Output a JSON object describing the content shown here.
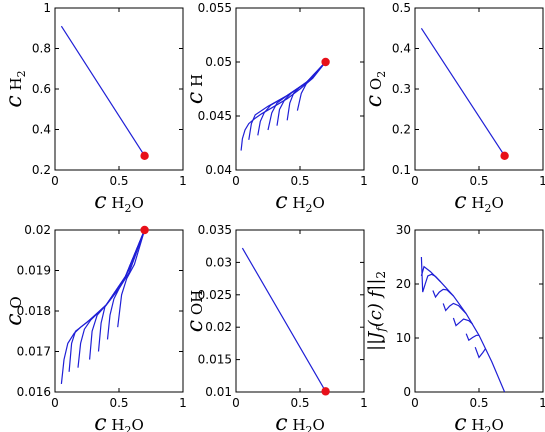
{
  "chart_data": [
    {
      "type": "line",
      "ylabel": "c",
      "ylabel_sub": "H 2",
      "xlabel": "c",
      "xlabel_sub": "H 2 O",
      "xlim": [
        0,
        1
      ],
      "ylim": [
        0.2,
        1
      ],
      "xticks": [
        "0",
        "0.5",
        "1"
      ],
      "yticks": [
        "0.2",
        "0.4",
        "0.6",
        "0.8",
        "1"
      ],
      "ytick_values": [
        0.2,
        0.4,
        0.6,
        0.8,
        1
      ],
      "xtick_values": [
        0,
        0.5,
        1
      ],
      "color": "#1f1fd6",
      "marker_color": "#e8101a",
      "series": [
        {
          "x": [
            0.05,
            0.7
          ],
          "y": [
            0.91,
            0.27
          ]
        }
      ],
      "marker": {
        "x": 0.7,
        "y": 0.27
      }
    },
    {
      "type": "line",
      "ylabel": "c",
      "ylabel_sub": "H",
      "xlabel": "c",
      "xlabel_sub": "H 2 O",
      "xlim": [
        0,
        1
      ],
      "ylim": [
        0.04,
        0.055
      ],
      "xticks": [
        "0",
        "0.5",
        "1"
      ],
      "yticks": [
        "0.04",
        "0.045",
        "0.05",
        "0.055"
      ],
      "ytick_values": [
        0.04,
        0.045,
        0.05,
        0.055
      ],
      "xtick_values": [
        0,
        0.5,
        1
      ],
      "color": "#1f1fd6",
      "marker_color": "#e8101a",
      "series": [
        {
          "x": [
            0.7,
            0.6,
            0.5,
            0.4,
            0.3,
            0.2,
            0.15,
            0.1,
            0.07,
            0.05,
            0.04
          ],
          "y": [
            0.05,
            0.0485,
            0.0475,
            0.0466,
            0.0459,
            0.0452,
            0.0448,
            0.0443,
            0.0437,
            0.0429,
            0.0418
          ]
        },
        {
          "x": [
            0.7,
            0.55,
            0.4,
            0.25,
            0.15,
            0.12,
            0.1
          ],
          "y": [
            0.05,
            0.0481,
            0.0469,
            0.0459,
            0.0451,
            0.0443,
            0.0428
          ]
        },
        {
          "x": [
            0.7,
            0.55,
            0.4,
            0.27,
            0.22,
            0.19,
            0.17
          ],
          "y": [
            0.05,
            0.0481,
            0.0469,
            0.046,
            0.0453,
            0.0445,
            0.0432
          ]
        },
        {
          "x": [
            0.7,
            0.55,
            0.4,
            0.32,
            0.28,
            0.25
          ],
          "y": [
            0.05,
            0.0481,
            0.0469,
            0.0462,
            0.0453,
            0.0437
          ]
        },
        {
          "x": [
            0.7,
            0.55,
            0.43,
            0.38,
            0.34,
            0.32
          ],
          "y": [
            0.05,
            0.0481,
            0.0471,
            0.0465,
            0.0456,
            0.0441
          ]
        },
        {
          "x": [
            0.7,
            0.58,
            0.5,
            0.45,
            0.42,
            0.4
          ],
          "y": [
            0.05,
            0.0484,
            0.0477,
            0.0471,
            0.0462,
            0.0446
          ]
        },
        {
          "x": [
            0.7,
            0.62,
            0.55,
            0.51,
            0.48
          ],
          "y": [
            0.05,
            0.0489,
            0.048,
            0.0471,
            0.0455
          ]
        }
      ],
      "marker": {
        "x": 0.7,
        "y": 0.05
      }
    },
    {
      "type": "line",
      "ylabel": "c",
      "ylabel_sub": "O 2",
      "xlabel": "c",
      "xlabel_sub": "H 2 O",
      "xlim": [
        0,
        1
      ],
      "ylim": [
        0.1,
        0.5
      ],
      "xticks": [
        "0",
        "0.5",
        "1"
      ],
      "yticks": [
        "0.1",
        "0.2",
        "0.3",
        "0.4",
        "0.5"
      ],
      "ytick_values": [
        0.1,
        0.2,
        0.3,
        0.4,
        0.5
      ],
      "xtick_values": [
        0,
        0.5,
        1
      ],
      "color": "#1f1fd6",
      "marker_color": "#e8101a",
      "series": [
        {
          "x": [
            0.05,
            0.7
          ],
          "y": [
            0.45,
            0.135
          ]
        }
      ],
      "marker": {
        "x": 0.7,
        "y": 0.135
      }
    },
    {
      "type": "line",
      "ylabel": "c",
      "ylabel_sub": "O",
      "xlabel": "c",
      "xlabel_sub": "H 2 O",
      "xlim": [
        0,
        1
      ],
      "ylim": [
        0.016,
        0.02
      ],
      "xticks": [
        "0",
        "0.5",
        "1"
      ],
      "yticks": [
        "0.016",
        "0.017",
        "0.018",
        "0.019",
        "0.02"
      ],
      "ytick_values": [
        0.016,
        0.017,
        0.018,
        0.019,
        0.02
      ],
      "xtick_values": [
        0,
        0.5,
        1
      ],
      "color": "#1f1fd6",
      "marker_color": "#e8101a",
      "series": [
        {
          "x": [
            0.7,
            0.6,
            0.5,
            0.4,
            0.3,
            0.2,
            0.15,
            0.1,
            0.07,
            0.05
          ],
          "y": [
            0.02,
            0.01915,
            0.01855,
            0.01815,
            0.01785,
            0.0176,
            0.01745,
            0.0172,
            0.0168,
            0.0162
          ]
        },
        {
          "x": [
            0.7,
            0.55,
            0.4,
            0.25,
            0.16,
            0.13,
            0.11
          ],
          "y": [
            0.02,
            0.01885,
            0.01815,
            0.01772,
            0.0175,
            0.0172,
            0.0165
          ]
        },
        {
          "x": [
            0.7,
            0.55,
            0.4,
            0.28,
            0.23,
            0.2,
            0.18
          ],
          "y": [
            0.02,
            0.01885,
            0.01815,
            0.01778,
            0.01755,
            0.0172,
            0.0166
          ]
        },
        {
          "x": [
            0.7,
            0.55,
            0.4,
            0.33,
            0.29,
            0.27
          ],
          "y": [
            0.02,
            0.01885,
            0.01815,
            0.0179,
            0.0175,
            0.0168
          ]
        },
        {
          "x": [
            0.7,
            0.55,
            0.45,
            0.39,
            0.36,
            0.34
          ],
          "y": [
            0.02,
            0.01885,
            0.01835,
            0.0181,
            0.0177,
            0.017
          ]
        },
        {
          "x": [
            0.7,
            0.58,
            0.5,
            0.46,
            0.43,
            0.41
          ],
          "y": [
            0.02,
            0.01895,
            0.01855,
            0.0183,
            0.0179,
            0.0173
          ]
        },
        {
          "x": [
            0.7,
            0.62,
            0.56,
            0.52,
            0.49
          ],
          "y": [
            0.02,
            0.01915,
            0.0188,
            0.0184,
            0.0176
          ]
        }
      ],
      "marker": {
        "x": 0.7,
        "y": 0.02
      }
    },
    {
      "type": "line",
      "ylabel": "c",
      "ylabel_sub": "OH",
      "xlabel": "c",
      "xlabel_sub": "H 2 O",
      "xlim": [
        0,
        1
      ],
      "ylim": [
        0.01,
        0.035
      ],
      "xticks": [
        "0",
        "0.5",
        "1"
      ],
      "yticks": [
        "0.01",
        "0.015",
        "0.02",
        "0.025",
        "0.03",
        "0.035"
      ],
      "ytick_values": [
        0.01,
        0.015,
        0.02,
        0.025,
        0.03,
        0.035
      ],
      "xtick_values": [
        0,
        0.5,
        1
      ],
      "color": "#1f1fd6",
      "marker_color": "#e8101a",
      "series": [
        {
          "x": [
            0.05,
            0.7
          ],
          "y": [
            0.0322,
            0.0101
          ]
        }
      ],
      "marker": {
        "x": 0.7,
        "y": 0.0101
      }
    },
    {
      "type": "line",
      "ylabel": "||J_f(c) f||_2",
      "xlabel": "c",
      "xlabel_sub": "H 2 O",
      "xlim": [
        0,
        1
      ],
      "ylim": [
        0,
        30
      ],
      "xticks": [
        "0",
        "0.5",
        "1"
      ],
      "yticks": [
        "0",
        "10",
        "20",
        "30"
      ],
      "ytick_values": [
        0,
        10,
        20,
        30
      ],
      "xtick_values": [
        0,
        0.5,
        1
      ],
      "color": "#1f1fd6",
      "series": [
        {
          "x": [
            0.05,
            0.07,
            0.12,
            0.2,
            0.3,
            0.4,
            0.5,
            0.6,
            0.7
          ],
          "y": [
            21.5,
            23.2,
            22.3,
            20.4,
            17.8,
            14.5,
            10.5,
            5.6,
            0
          ]
        },
        {
          "x": [
            0.05,
            0.06,
            0.08,
            0.1,
            0.13,
            0.16,
            0.2
          ],
          "y": [
            25.0,
            18.5,
            20.0,
            21.5,
            21.8,
            21.4,
            20.4
          ]
        },
        {
          "x": [
            0.14,
            0.16,
            0.19,
            0.22,
            0.25,
            0.3
          ],
          "y": [
            18.8,
            17.6,
            18.5,
            19.0,
            18.9,
            17.8
          ]
        },
        {
          "x": [
            0.22,
            0.24,
            0.27,
            0.3,
            0.34,
            0.4
          ],
          "y": [
            16.4,
            15.1,
            15.9,
            16.4,
            16.0,
            14.5
          ]
        },
        {
          "x": [
            0.3,
            0.32,
            0.35,
            0.38,
            0.42,
            0.45
          ],
          "y": [
            13.7,
            12.3,
            12.9,
            13.5,
            13.2,
            12.6
          ]
        },
        {
          "x": [
            0.4,
            0.42,
            0.45,
            0.48,
            0.5
          ],
          "y": [
            10.8,
            9.6,
            10.1,
            10.5,
            10.5
          ]
        },
        {
          "x": [
            0.47,
            0.5,
            0.53,
            0.55
          ],
          "y": [
            8.3,
            6.4,
            7.3,
            8.0
          ]
        }
      ]
    }
  ]
}
